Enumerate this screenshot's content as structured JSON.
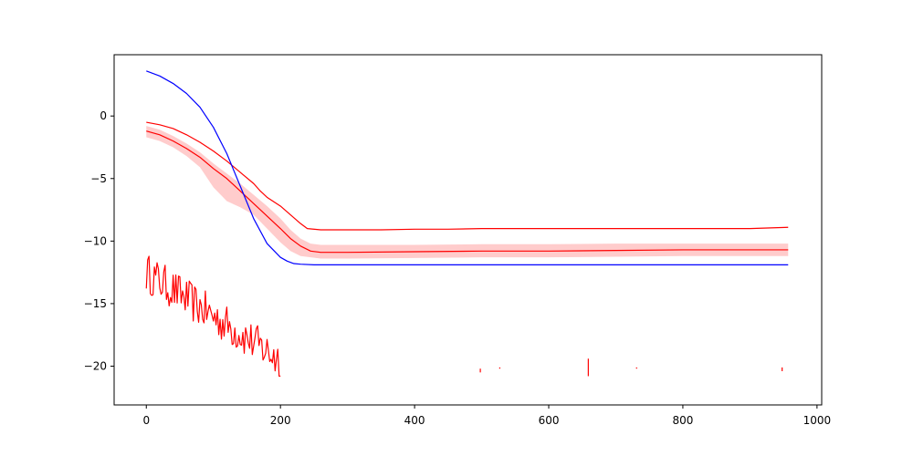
{
  "chart_data": {
    "type": "line",
    "title": "",
    "xlabel": "",
    "ylabel": "",
    "xlim": [
      -48,
      1007
    ],
    "ylim": [
      -23.1,
      4.9
    ],
    "x_ticks": [
      {
        "value": 0,
        "label": "0"
      },
      {
        "value": 200,
        "label": "200"
      },
      {
        "value": 400,
        "label": "400"
      },
      {
        "value": 600,
        "label": "600"
      },
      {
        "value": 800,
        "label": "800"
      },
      {
        "value": 1000,
        "label": "1000"
      }
    ],
    "y_ticks": [
      {
        "value": 0,
        "label": "0"
      },
      {
        "value": -5,
        "label": "−5"
      },
      {
        "value": -10,
        "label": "−10"
      },
      {
        "value": -15,
        "label": "−15"
      },
      {
        "value": -20,
        "label": "−20"
      }
    ],
    "grid": false,
    "legend": "none",
    "colors": {
      "red": "#ff0000",
      "blue": "#0000ff",
      "band": "#ffcccc"
    },
    "series": [
      {
        "color": "#ff0000",
        "style": "upper-line",
        "x": [
          0,
          20,
          40,
          60,
          80,
          100,
          120,
          140,
          160,
          170,
          180,
          200,
          215,
          230,
          240,
          260,
          300,
          350,
          400,
          450,
          500,
          550,
          600,
          650,
          700,
          750,
          800,
          850,
          900,
          957
        ],
        "y": [
          -0.5,
          -0.7,
          -1.0,
          -1.5,
          -2.1,
          -2.8,
          -3.6,
          -4.5,
          -5.4,
          -6.0,
          -6.5,
          -7.2,
          -7.9,
          -8.6,
          -9.0,
          -9.1,
          -9.1,
          -9.1,
          -9.05,
          -9.05,
          -9.0,
          -9.0,
          -9.0,
          -9.0,
          -9.0,
          -9.0,
          -9.0,
          -9.0,
          -9.0,
          -8.9
        ]
      },
      {
        "color": "#ff0000",
        "style": "mean-line",
        "x": [
          0,
          20,
          40,
          60,
          80,
          100,
          120,
          140,
          160,
          180,
          200,
          215,
          230,
          245,
          260,
          300,
          400,
          500,
          600,
          700,
          800,
          900,
          957
        ],
        "y": [
          -1.2,
          -1.5,
          -2.0,
          -2.6,
          -3.3,
          -4.2,
          -5.0,
          -6.0,
          -7.0,
          -8.0,
          -9.0,
          -9.8,
          -10.4,
          -10.8,
          -10.9,
          -10.9,
          -10.85,
          -10.8,
          -10.8,
          -10.75,
          -10.7,
          -10.7,
          -10.7
        ]
      },
      {
        "color": "#ffcccc",
        "style": "band",
        "x": [
          0,
          20,
          40,
          60,
          80,
          100,
          120,
          140,
          160,
          180,
          200,
          215,
          230,
          245,
          260,
          300,
          400,
          500,
          600,
          700,
          800,
          900,
          957
        ],
        "y_upper": [
          -0.8,
          -1.1,
          -1.6,
          -2.2,
          -2.9,
          -3.8,
          -4.6,
          -5.4,
          -6.3,
          -7.2,
          -8.2,
          -9.1,
          -9.8,
          -10.2,
          -10.3,
          -10.3,
          -10.3,
          -10.25,
          -10.25,
          -10.2,
          -10.2,
          -10.2,
          -10.2
        ],
        "y_lower": [
          -1.7,
          -2.0,
          -2.5,
          -3.2,
          -4.1,
          -5.7,
          -6.8,
          -7.3,
          -7.9,
          -9.0,
          -10.1,
          -10.8,
          -11.2,
          -11.3,
          -11.4,
          -11.4,
          -11.35,
          -11.3,
          -11.3,
          -11.25,
          -11.2,
          -11.2,
          -11.2
        ]
      },
      {
        "color": "#0000ff",
        "style": "line",
        "x": [
          0,
          20,
          40,
          60,
          80,
          100,
          120,
          140,
          160,
          180,
          200,
          210,
          220,
          230,
          250,
          300,
          400,
          500,
          600,
          700,
          800,
          900,
          957
        ],
        "y": [
          3.6,
          3.2,
          2.6,
          1.8,
          0.7,
          -0.9,
          -3.0,
          -5.6,
          -8.2,
          -10.2,
          -11.3,
          -11.6,
          -11.8,
          -11.85,
          -11.9,
          -11.9,
          -11.9,
          -11.9,
          -11.9,
          -11.9,
          -11.9,
          -11.9,
          -11.9
        ]
      },
      {
        "color": "#ff0000",
        "style": "noisy-line",
        "x_start": 0,
        "x_end": 200,
        "trend_start": -12.5,
        "trend_end": -19.5,
        "noise": 1.6,
        "floor": -20.8,
        "x": [],
        "y": []
      },
      {
        "color": "#ff0000",
        "style": "spikes",
        "segments": [
          {
            "x": 498,
            "y0": -20.2,
            "y1": -20.5
          },
          {
            "x": 527,
            "y0": -20.1,
            "y1": -20.2
          },
          {
            "x": 659,
            "y0": -19.4,
            "y1": -20.8
          },
          {
            "x": 731,
            "y0": -20.1,
            "y1": -20.2
          },
          {
            "x": 948,
            "y0": -20.1,
            "y1": -20.4
          }
        ]
      }
    ]
  }
}
